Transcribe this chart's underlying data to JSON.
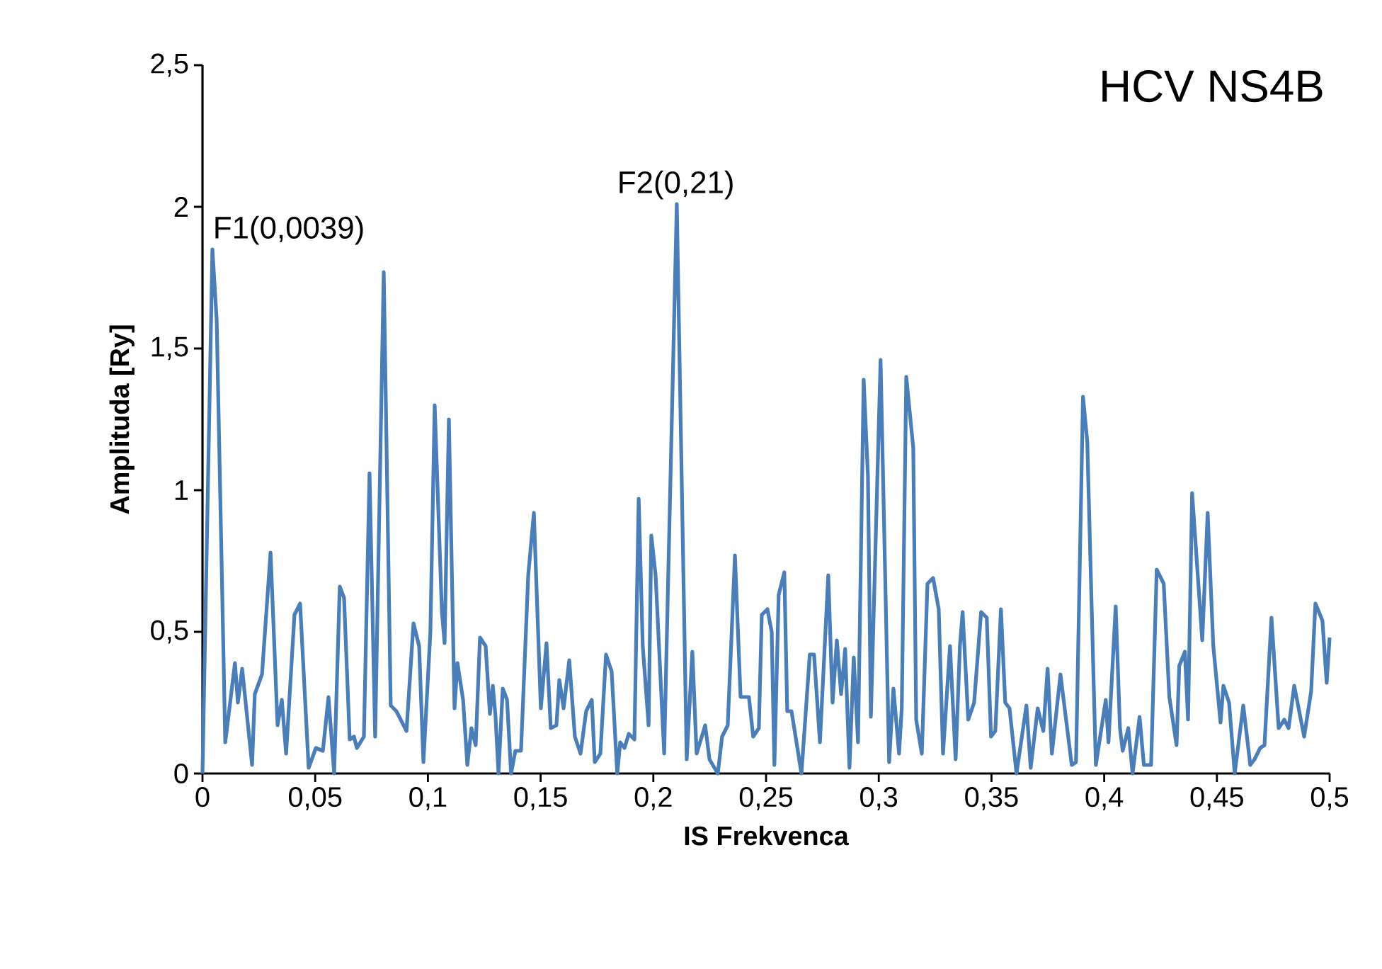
{
  "chart_data": {
    "type": "line",
    "title": "HCV NS4B",
    "xlabel": "IS Frekvenca",
    "ylabel": "Amplituda [Ry]",
    "color": "#4a7ebb",
    "x": [
      0,
      0.0044,
      0.0063,
      0.0101,
      0.0144,
      0.0157,
      0.0176,
      0.022,
      0.0232,
      0.0264,
      0.0302,
      0.0333,
      0.0352,
      0.0371,
      0.0408,
      0.0433,
      0.0471,
      0.0503,
      0.0534,
      0.0559,
      0.0584,
      0.0609,
      0.0628,
      0.0653,
      0.0672,
      0.0685,
      0.0716,
      0.0741,
      0.0766,
      0.0804,
      0.0835,
      0.086,
      0.0905,
      0.0936,
      0.0961,
      0.098,
      0.1011,
      0.103,
      0.1062,
      0.1074,
      0.1093,
      0.1118,
      0.1131,
      0.1156,
      0.1175,
      0.1193,
      0.1212,
      0.1231,
      0.1256,
      0.1275,
      0.1288,
      0.13,
      0.1313,
      0.1332,
      0.1351,
      0.1369,
      0.1388,
      0.1413,
      0.1445,
      0.147,
      0.1501,
      0.1526,
      0.1545,
      0.157,
      0.1583,
      0.1602,
      0.1627,
      0.1652,
      0.1677,
      0.1702,
      0.1727,
      0.174,
      0.1765,
      0.179,
      0.1815,
      0.184,
      0.1853,
      0.1872,
      0.1891,
      0.1916,
      0.1935,
      0.1953,
      0.1979,
      0.1991,
      0.201,
      0.2048,
      0.2104,
      0.2148,
      0.2173,
      0.2192,
      0.223,
      0.2249,
      0.2286,
      0.2305,
      0.233,
      0.2362,
      0.2387,
      0.2424,
      0.2443,
      0.2468,
      0.2481,
      0.2506,
      0.2525,
      0.2537,
      0.2556,
      0.2581,
      0.2594,
      0.2613,
      0.2657,
      0.2694,
      0.2713,
      0.2739,
      0.2776,
      0.2795,
      0.2814,
      0.2833,
      0.2851,
      0.287,
      0.2889,
      0.2908,
      0.2933,
      0.2952,
      0.2965,
      0.3008,
      0.3046,
      0.3065,
      0.309,
      0.3102,
      0.3122,
      0.3153,
      0.3166,
      0.3191,
      0.3216,
      0.3241,
      0.3266,
      0.3285,
      0.3316,
      0.3341,
      0.336,
      0.3372,
      0.3397,
      0.3423,
      0.3454,
      0.3479,
      0.3498,
      0.3517,
      0.3542,
      0.3561,
      0.358,
      0.3611,
      0.3655,
      0.3674,
      0.3705,
      0.373,
      0.3749,
      0.3768,
      0.3806,
      0.3856,
      0.3875,
      0.3906,
      0.3925,
      0.3963,
      0.4007,
      0.4019,
      0.4051,
      0.407,
      0.4082,
      0.4107,
      0.4126,
      0.4157,
      0.4176,
      0.4208,
      0.4233,
      0.4264,
      0.4289,
      0.4321,
      0.4333,
      0.4358,
      0.4372,
      0.439,
      0.4435,
      0.4459,
      0.4484,
      0.4516,
      0.4529,
      0.4554,
      0.4579,
      0.4617,
      0.4648,
      0.4667,
      0.4692,
      0.4711,
      0.4742,
      0.4774,
      0.4799,
      0.4818,
      0.4843,
      0.4887,
      0.4918,
      0.4937,
      0.4968,
      0.4987,
      0.5
    ],
    "values": [
      0,
      1.85,
      1.6,
      0.11,
      0.39,
      0.25,
      0.37,
      0.03,
      0.28,
      0.35,
      0.78,
      0.17,
      0.26,
      0.07,
      0.56,
      0.6,
      0.02,
      0.09,
      0.08,
      0.27,
      0,
      0.66,
      0.62,
      0.12,
      0.13,
      0.09,
      0.13,
      1.06,
      0.13,
      1.77,
      0.24,
      0.22,
      0.15,
      0.53,
      0.45,
      0.04,
      0.5,
      1.3,
      0.57,
      0.46,
      1.25,
      0.23,
      0.39,
      0.26,
      0.03,
      0.16,
      0.1,
      0.48,
      0.45,
      0.21,
      0.31,
      0.2,
      0,
      0.3,
      0.26,
      0,
      0.08,
      0.08,
      0.7,
      0.92,
      0.23,
      0.46,
      0.16,
      0.17,
      0.33,
      0.23,
      0.4,
      0.13,
      0.07,
      0.22,
      0.26,
      0.04,
      0.07,
      0.42,
      0.36,
      0,
      0.11,
      0.09,
      0.14,
      0.12,
      0.97,
      0.45,
      0.17,
      0.84,
      0.7,
      0.07,
      2.01,
      0.05,
      0.43,
      0.07,
      0.17,
      0.05,
      0,
      0.13,
      0.17,
      0.77,
      0.27,
      0.27,
      0.13,
      0.16,
      0.56,
      0.58,
      0.5,
      0.03,
      0.63,
      0.71,
      0.22,
      0.22,
      0,
      0.42,
      0.42,
      0.11,
      0.7,
      0.25,
      0.47,
      0.28,
      0.44,
      0.02,
      0.41,
      0.11,
      1.39,
      1.05,
      0.2,
      1.46,
      0.04,
      0.3,
      0.07,
      0.23,
      1.4,
      1.15,
      0.19,
      0.07,
      0.67,
      0.69,
      0.58,
      0.07,
      0.45,
      0.05,
      0.45,
      0.57,
      0.19,
      0.25,
      0.57,
      0.55,
      0.13,
      0.15,
      0.58,
      0.25,
      0.23,
      0,
      0.24,
      0.02,
      0.23,
      0.15,
      0.37,
      0.07,
      0.35,
      0.03,
      0.04,
      1.33,
      1.17,
      0.03,
      0.26,
      0.11,
      0.59,
      0.16,
      0.08,
      0.16,
      0,
      0.2,
      0.03,
      0.03,
      0.72,
      0.67,
      0.27,
      0.1,
      0.38,
      0.43,
      0.19,
      0.99,
      0.47,
      0.92,
      0.45,
      0.18,
      0.31,
      0.25,
      0,
      0.24,
      0.03,
      0.05,
      0.09,
      0.1,
      0.55,
      0.16,
      0.19,
      0.16,
      0.31,
      0.13,
      0.29,
      0.6,
      0.54,
      0.32,
      0.48
    ],
    "xlim": [
      0,
      0.5
    ],
    "xticks": [
      0,
      {
        "value": 0.05,
        "label": "0,05"
      },
      {
        "value": 0.1,
        "label": "0,1"
      },
      {
        "value": 0.15,
        "label": "0,15"
      },
      {
        "value": 0.2,
        "label": "0,2"
      },
      {
        "value": 0.25,
        "label": "0,25"
      },
      {
        "value": 0.3,
        "label": "0,3"
      },
      {
        "value": 0.35,
        "label": "0,35"
      },
      {
        "value": 0.4,
        "label": "0,4"
      },
      {
        "value": 0.45,
        "label": "0,45"
      },
      {
        "value": 0.5,
        "label": "0,5"
      }
    ],
    "ylim": [
      0,
      2.5
    ],
    "yticks": [
      0,
      {
        "value": 0.5,
        "label": "0,5"
      },
      1,
      {
        "value": 1.5,
        "label": "1,5"
      },
      2,
      {
        "value": 2.5,
        "label": "2,5"
      }
    ],
    "annotations": [
      {
        "text": "F1(0,0039)",
        "x": 0.0039,
        "y": 1.85
      },
      {
        "text": "F2(0,21)",
        "x": 0.21,
        "y": 2.01
      }
    ],
    "grid": false
  }
}
